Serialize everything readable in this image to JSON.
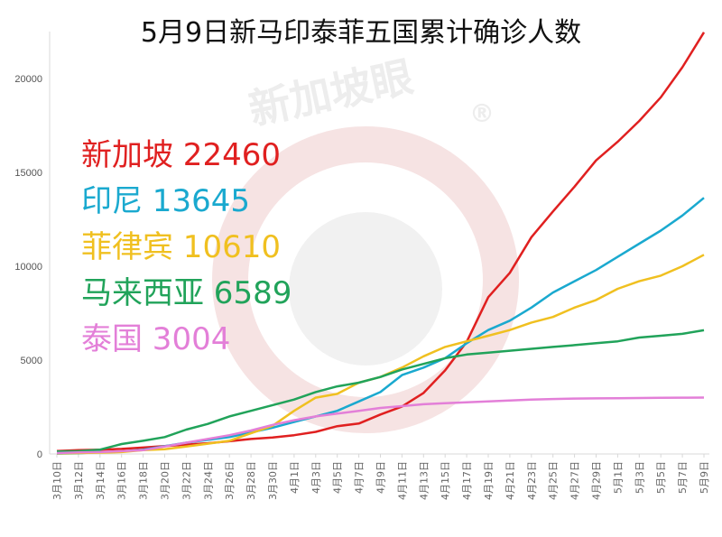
{
  "title": "5月9日新马印泰菲五国累计确诊人数",
  "watermark": {
    "text": "新加坡眼",
    "reg_mark": "®"
  },
  "colors": {
    "singapore": "#e02020",
    "indonesia": "#1aa9cf",
    "philippines": "#f0c020",
    "malaysia": "#21a35a",
    "thailand": "#e37fd8",
    "axis": "#d8d8d8",
    "tick_text": "#555555",
    "watermark": "#f3dede"
  },
  "chart_data": {
    "type": "line",
    "title": "5月9日新马印泰菲五国累计确诊人数",
    "xlabel": "",
    "ylabel": "",
    "ylim": [
      0,
      22500
    ],
    "yticks": [
      0,
      5000,
      10000,
      15000,
      20000
    ],
    "grid": false,
    "legend_position": "left",
    "x_labels": [
      "3月10日",
      "3月12日",
      "3月14日",
      "3月16日",
      "3月18日",
      "3月20日",
      "3月22日",
      "3月24日",
      "3月26日",
      "3月28日",
      "3月30日",
      "4月1日",
      "4月3日",
      "4月5日",
      "4月7日",
      "4月9日",
      "4月11日",
      "4月13日",
      "4月15日",
      "4月17日",
      "4月19日",
      "4月21日",
      "4月23日",
      "4月25日",
      "4月27日",
      "4月29日",
      "5月1日",
      "5月3日",
      "5月5日",
      "5月7日",
      "5月9日"
    ],
    "series": [
      {
        "name": "新加坡",
        "label": "新加坡 22460",
        "color": "#e02020",
        "values": [
          160,
          200,
          230,
          270,
          340,
          420,
          500,
          570,
          680,
          800,
          880,
          1000,
          1180,
          1480,
          1620,
          2100,
          2530,
          3250,
          4450,
          5970,
          8350,
          9650,
          11550,
          12920,
          14240,
          15640,
          16630,
          17740,
          19000,
          20600,
          22460
        ]
      },
      {
        "name": "印尼",
        "label": "印尼 13645",
        "color": "#1aa9cf",
        "values": [
          20,
          40,
          100,
          130,
          230,
          420,
          600,
          750,
          900,
          1150,
          1400,
          1700,
          2000,
          2300,
          2800,
          3300,
          4200,
          4600,
          5100,
          5900,
          6600,
          7100,
          7800,
          8600,
          9200,
          9800,
          10500,
          11200,
          11900,
          12700,
          13645
        ]
      },
      {
        "name": "菲律宾",
        "label": "菲律宾 10610",
        "color": "#f0c020",
        "values": [
          30,
          50,
          70,
          100,
          200,
          250,
          400,
          550,
          700,
          1100,
          1500,
          2300,
          3000,
          3200,
          3800,
          4100,
          4600,
          5200,
          5700,
          6000,
          6300,
          6600,
          7000,
          7300,
          7800,
          8200,
          8800,
          9200,
          9500,
          10000,
          10610
        ]
      },
      {
        "name": "马来西亚",
        "label": "马来西亚 6589",
        "color": "#21a35a",
        "values": [
          130,
          150,
          230,
          530,
          700,
          900,
          1300,
          1600,
          2000,
          2300,
          2600,
          2900,
          3300,
          3600,
          3800,
          4100,
          4500,
          4800,
          5100,
          5300,
          5400,
          5500,
          5600,
          5700,
          5800,
          5900,
          6000,
          6200,
          6300,
          6400,
          6589
        ]
      },
      {
        "name": "泰国",
        "label": "泰国 3004",
        "color": "#e37fd8",
        "values": [
          50,
          80,
          100,
          150,
          200,
          400,
          600,
          800,
          1000,
          1250,
          1550,
          1800,
          2000,
          2150,
          2300,
          2450,
          2550,
          2650,
          2700,
          2750,
          2800,
          2850,
          2900,
          2930,
          2950,
          2960,
          2970,
          2980,
          2990,
          3000,
          3004
        ]
      }
    ]
  }
}
